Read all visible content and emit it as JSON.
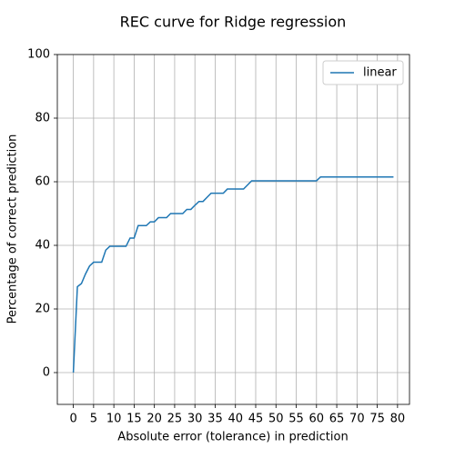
{
  "chart_data": {
    "type": "line",
    "title": "REC curve for Ridge regression",
    "xlabel": "Absolute error (tolerance) in prediction",
    "ylabel": "Percentage of correct prediction",
    "x": [
      0,
      1,
      2,
      3,
      4,
      5,
      6,
      7,
      8,
      9,
      10,
      11,
      12,
      13,
      14,
      15,
      16,
      17,
      18,
      19,
      20,
      21,
      22,
      23,
      24,
      25,
      26,
      27,
      28,
      29,
      30,
      31,
      32,
      33,
      34,
      35,
      36,
      37,
      38,
      39,
      40,
      41,
      42,
      43,
      44,
      45,
      46,
      47,
      48,
      49,
      50,
      51,
      52,
      53,
      54,
      55,
      56,
      57,
      58,
      59,
      60,
      61,
      62,
      63,
      64,
      65,
      66,
      67,
      68,
      69,
      70,
      71,
      72,
      73,
      74,
      75,
      76,
      77,
      78,
      79
    ],
    "series": [
      {
        "name": "linear",
        "color": "#1f77b4",
        "values": [
          0,
          27,
          28,
          31,
          33.5,
          34.7,
          34.7,
          34.7,
          38.5,
          39.7,
          39.7,
          39.7,
          39.7,
          39.7,
          42.3,
          42.3,
          46.2,
          46.2,
          46.2,
          47.4,
          47.4,
          48.7,
          48.7,
          48.7,
          50,
          50,
          50,
          50,
          51.3,
          51.3,
          52.6,
          53.8,
          53.8,
          55.1,
          56.4,
          56.4,
          56.4,
          56.4,
          57.7,
          57.7,
          57.7,
          57.7,
          57.7,
          59,
          60.3,
          60.3,
          60.3,
          60.3,
          60.3,
          60.3,
          60.3,
          60.3,
          60.3,
          60.3,
          60.3,
          60.3,
          60.3,
          60.3,
          60.3,
          60.3,
          60.3,
          61.5,
          61.5,
          61.5,
          61.5,
          61.5,
          61.5,
          61.5,
          61.5,
          61.5,
          61.5,
          61.5,
          61.5,
          61.5,
          61.5,
          61.5,
          61.5,
          61.5,
          61.5,
          61.5
        ]
      }
    ],
    "xlim": [
      -3.95,
      82.95
    ],
    "xticks": [
      0,
      5,
      10,
      15,
      20,
      25,
      30,
      35,
      40,
      45,
      50,
      55,
      60,
      65,
      70,
      75,
      80
    ],
    "ylim": [
      -10,
      100
    ],
    "yticks": [
      0,
      20,
      40,
      60,
      80,
      100
    ],
    "grid": true,
    "legend": "upper right"
  }
}
